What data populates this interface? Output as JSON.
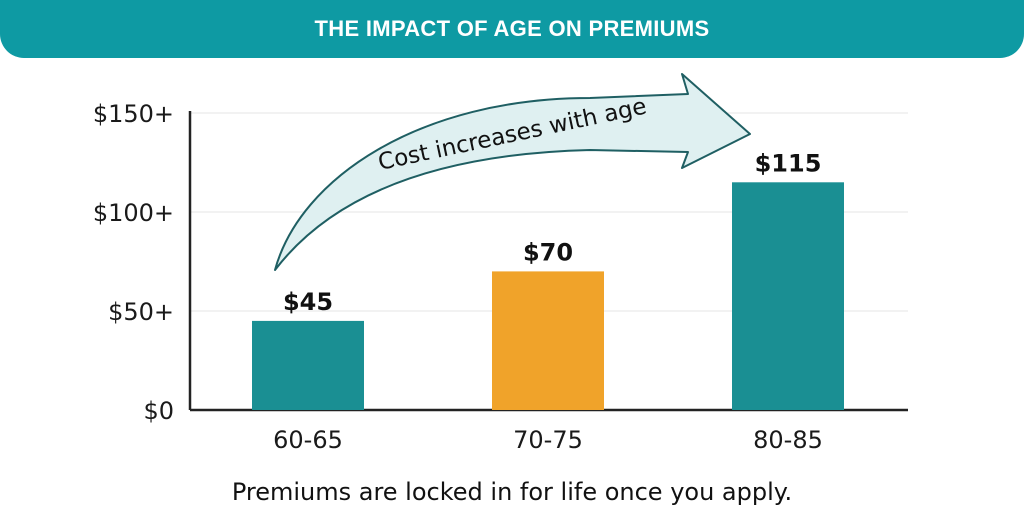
{
  "header": {
    "title": "THE IMPACT OF AGE ON PREMIUMS"
  },
  "annotation": {
    "arrow_text": "Cost increases with age"
  },
  "footer": {
    "note": "Premiums are locked in for life once you apply."
  },
  "colors": {
    "banner": "#0e9aa3",
    "teal_bar": "#1a8f93",
    "orange_bar": "#f0a32a",
    "arrow_fill": "#dff0f1",
    "arrow_stroke": "#1f5f63"
  },
  "chart_data": {
    "type": "bar",
    "categories": [
      "60-65",
      "70-75",
      "80-85"
    ],
    "values": [
      45,
      70,
      115
    ],
    "data_labels": [
      "$45",
      "$70",
      "$115"
    ],
    "bar_colors": [
      "#1a8f93",
      "#f0a32a",
      "#1a8f93"
    ],
    "ylim": [
      0,
      150
    ],
    "yticks": [
      0,
      50,
      100,
      150
    ],
    "ytick_labels": [
      "$0",
      "$50+",
      "$100+",
      "$150+"
    ],
    "grid": true,
    "title": "THE IMPACT OF AGE ON PREMIUMS",
    "xlabel": "",
    "ylabel": ""
  }
}
